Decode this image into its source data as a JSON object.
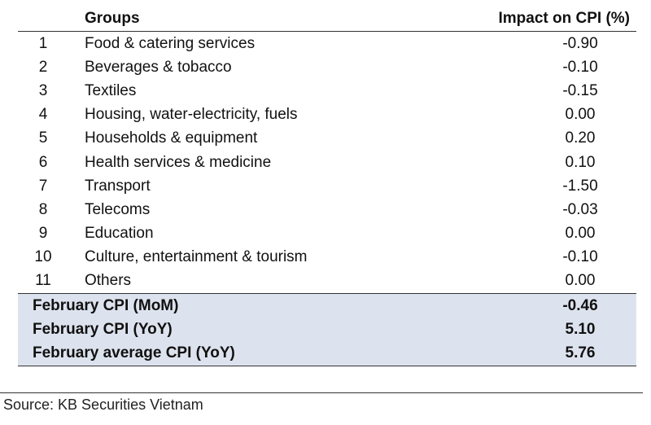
{
  "table": {
    "headers": {
      "group": "Groups",
      "impact": "Impact on CPI (%)"
    },
    "rows": [
      {
        "num": "1",
        "group": "Food & catering services",
        "impact": "-0.90"
      },
      {
        "num": "2",
        "group": "Beverages & tobacco",
        "impact": "-0.10"
      },
      {
        "num": "3",
        "group": "Textiles",
        "impact": "-0.15"
      },
      {
        "num": "4",
        "group": "Housing, water-electricity, fuels",
        "impact": "0.00"
      },
      {
        "num": "5",
        "group": "Households & equipment",
        "impact": "0.20"
      },
      {
        "num": "6",
        "group": "Health services & medicine",
        "impact": "0.10"
      },
      {
        "num": "7",
        "group": "Transport",
        "impact": "-1.50"
      },
      {
        "num": "8",
        "group": "Telecoms",
        "impact": "-0.03"
      },
      {
        "num": "9",
        "group": "Education",
        "impact": "0.00"
      },
      {
        "num": "10",
        "group": "Culture, entertainment & tourism",
        "impact": "-0.10"
      },
      {
        "num": "11",
        "group": "Others",
        "impact": "0.00"
      }
    ],
    "summary": [
      {
        "label": "February CPI (MoM)",
        "value": "-0.46"
      },
      {
        "label": "February CPI (YoY)",
        "value": "5.10"
      },
      {
        "label": "February average CPI (YoY)",
        "value": "5.76"
      }
    ]
  },
  "source": "Source: KB Securities Vietnam",
  "colors": {
    "summary_background": "#dde3ee"
  }
}
